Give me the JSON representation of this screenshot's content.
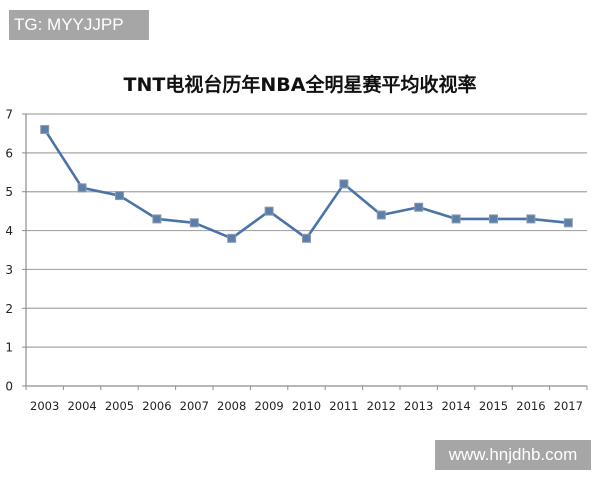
{
  "watermarks": {
    "top": "TG: MYYJJPP",
    "bottom": "www.hnjdhb.com"
  },
  "colors": {
    "line": "#4a74a8",
    "marker": "#5b7fa8",
    "grid": "#a6a6a6",
    "watermark_bg": "#a6a6a6"
  },
  "chart_data": {
    "type": "line",
    "title": "TNT电视台历年NBA全明星赛平均收视率",
    "xlabel": "",
    "ylabel": "",
    "categories": [
      "2003",
      "2004",
      "2005",
      "2006",
      "2007",
      "2008",
      "2009",
      "2010",
      "2011",
      "2012",
      "2013",
      "2014",
      "2015",
      "2016",
      "2017"
    ],
    "series": [
      {
        "name": "平均收视率",
        "values": [
          6.6,
          5.1,
          4.9,
          4.3,
          4.2,
          3.8,
          4.5,
          3.8,
          5.2,
          4.4,
          4.6,
          4.3,
          4.3,
          4.3,
          4.2
        ]
      }
    ],
    "ylim": [
      0,
      7
    ],
    "yticks": [
      0,
      1,
      2,
      3,
      4,
      5,
      6,
      7
    ],
    "grid": true,
    "legend": "none",
    "marker": "square"
  }
}
